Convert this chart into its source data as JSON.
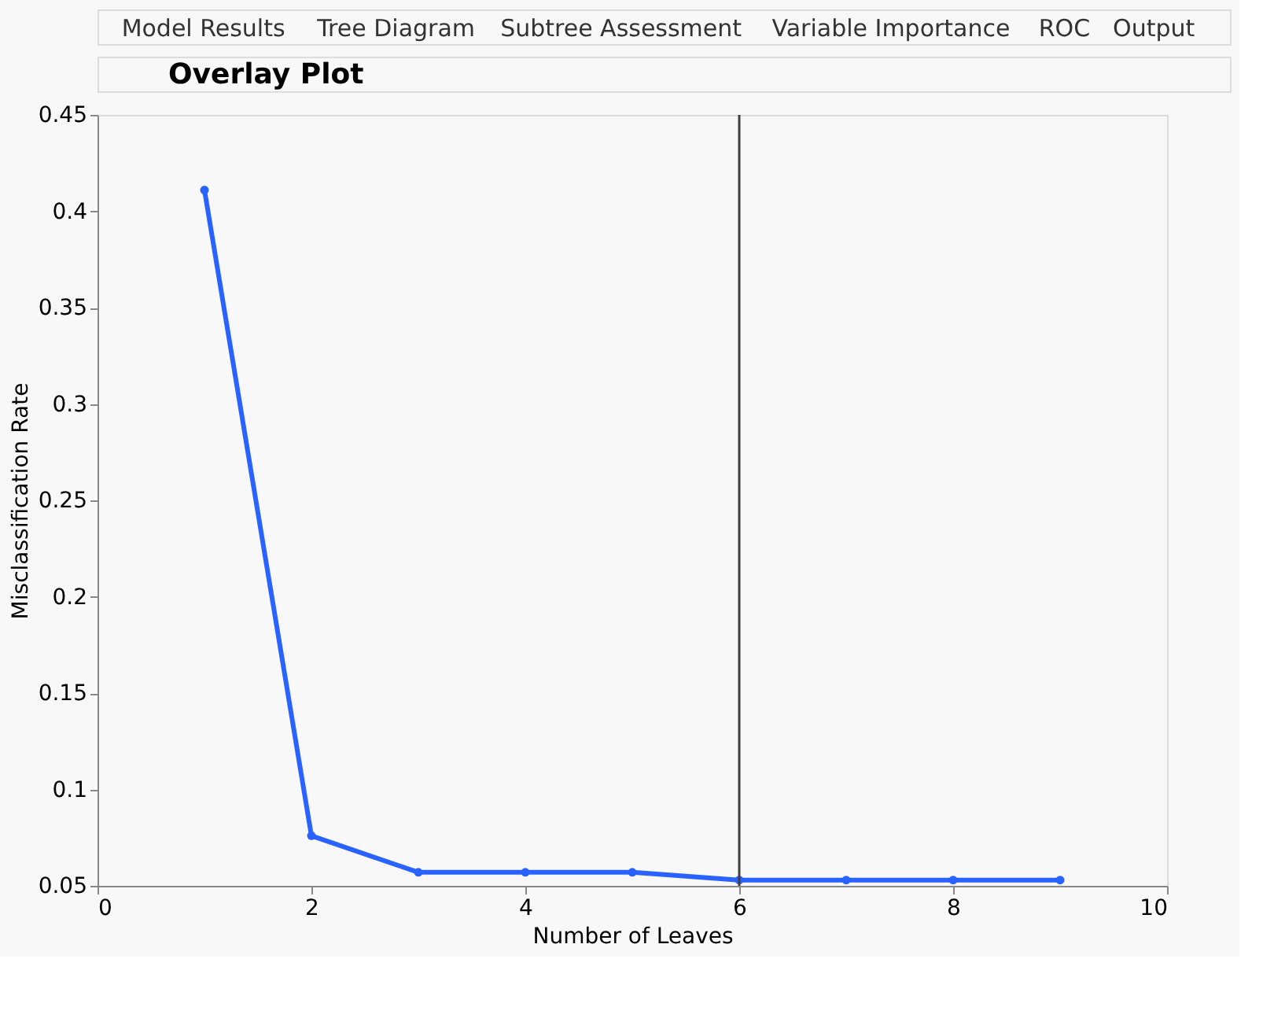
{
  "chart_data": {
    "type": "line",
    "title": "Overlay Plot",
    "annotations": [
      "Model Results",
      "Tree Diagram",
      "Subtree Assessment",
      "Variable Importance",
      "ROC",
      "Output"
    ],
    "xlabel": "Number of Leaves",
    "ylabel": "Misclassification Rate",
    "x": [
      1,
      2,
      3,
      4,
      5,
      6,
      7,
      8,
      9
    ],
    "series": [
      {
        "color": "#2962ff",
        "values": [
          0.411,
          0.076,
          0.057,
          0.057,
          0.057,
          0.053,
          0.053,
          0.053,
          0.053
        ]
      }
    ],
    "xlim": [
      0,
      10
    ],
    "xticks": [
      0,
      2,
      4,
      6,
      8,
      10
    ],
    "ylim": [
      0.05,
      0.45
    ],
    "yticks": [
      0.05,
      0.1,
      0.15,
      0.2,
      0.25,
      0.3,
      0.35,
      0.4,
      0.45
    ],
    "ref_lines": [
      {
        "axis": "x",
        "value": 6,
        "color": "#404040"
      }
    ],
    "marker": "circle",
    "line_style": "solid",
    "grid": false
  }
}
